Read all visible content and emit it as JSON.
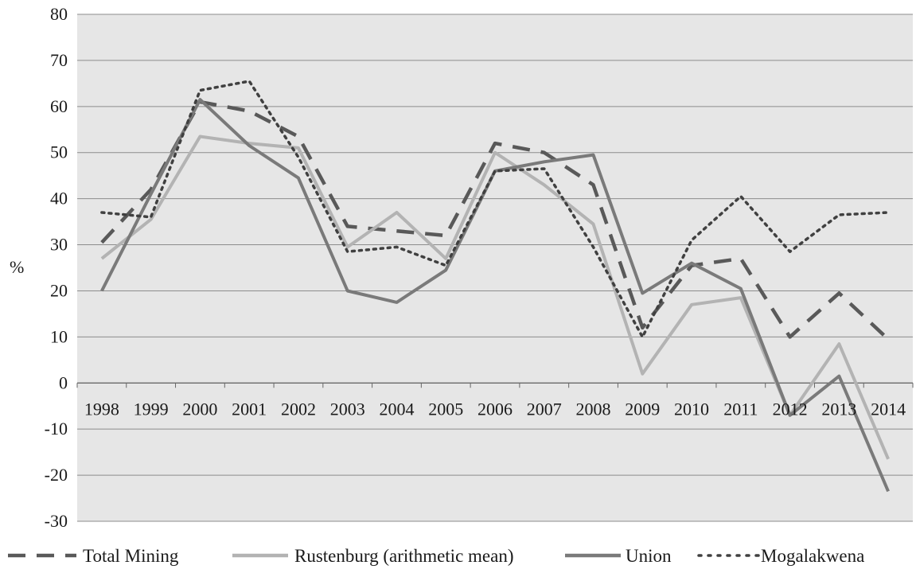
{
  "chart_data": {
    "type": "line",
    "title": "",
    "xlabel": "",
    "ylabel": "%",
    "ylim": [
      -30,
      80
    ],
    "ytick_step": 10,
    "grid": true,
    "legend_position": "bottom",
    "plot_background": "#e6e6e6",
    "x": [
      "1998",
      "1999",
      "2000",
      "2001",
      "2002",
      "2003",
      "2004",
      "2005",
      "2006",
      "2007",
      "2008",
      "2009",
      "2010",
      "2011",
      "2012",
      "2013",
      "2014"
    ],
    "series": [
      {
        "name": "Total Mining",
        "style": "dashed",
        "color": "#595959",
        "values": [
          30.5,
          42,
          61,
          59,
          53.5,
          34,
          33,
          32,
          52,
          50,
          43,
          12,
          25.5,
          27,
          10,
          19.5,
          9.5
        ]
      },
      {
        "name": "Rustenburg (arithmetic mean)",
        "style": "solid",
        "color": "#b3b3b3",
        "values": [
          27,
          35.5,
          53.5,
          52,
          51,
          29.5,
          37,
          27,
          50,
          43,
          34.5,
          2,
          17,
          18.5,
          -7,
          8.5,
          -16.5
        ]
      },
      {
        "name": "Union",
        "style": "solid",
        "color": "#7a7a7a",
        "values": [
          20,
          41,
          61.5,
          51.5,
          44.5,
          20,
          17.5,
          24.5,
          46,
          48,
          49.5,
          19.5,
          26,
          20.5,
          -7,
          1.5,
          -23.5
        ]
      },
      {
        "name": "Mogalakwena",
        "style": "dotted",
        "color": "#404040",
        "values": [
          37,
          36,
          63.5,
          65.5,
          49,
          28.5,
          29.5,
          25.5,
          46,
          46.5,
          29.5,
          10,
          31,
          40.5,
          28.5,
          36.5,
          37
        ]
      }
    ]
  }
}
